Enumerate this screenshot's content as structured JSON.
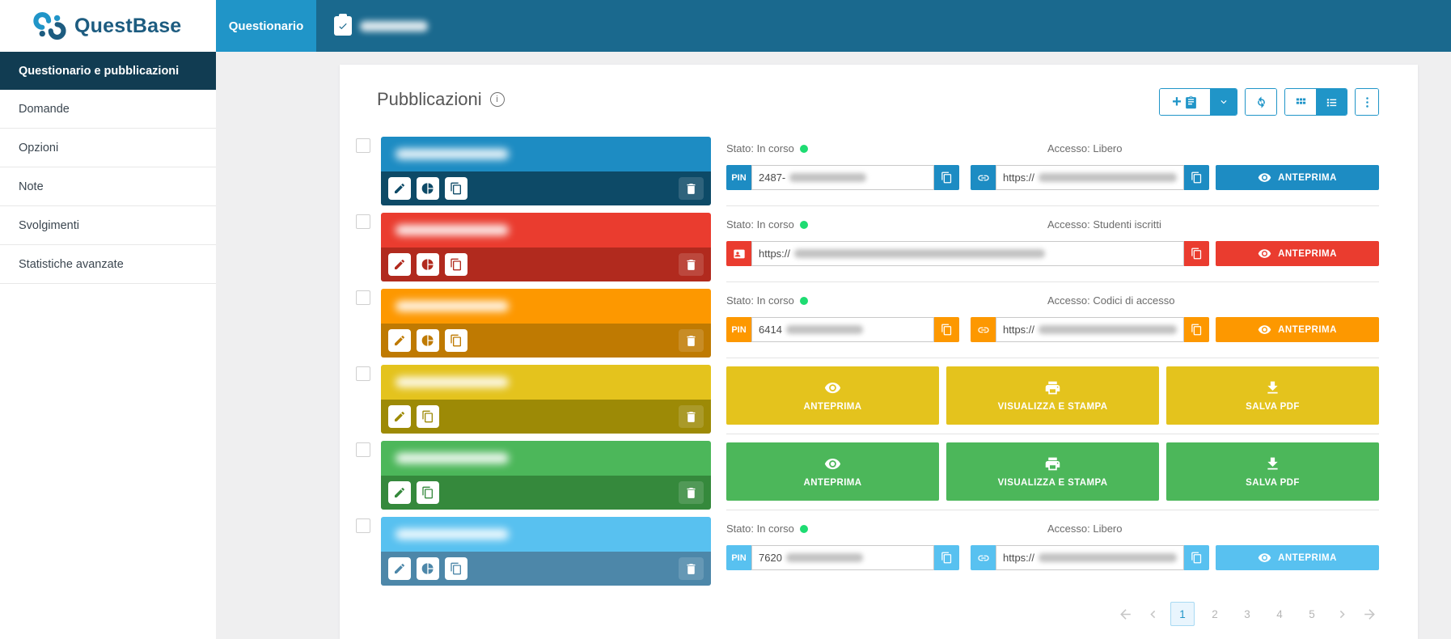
{
  "brand": {
    "name": "QuestBase"
  },
  "header": {
    "tab_questionario": "Questionario",
    "doc_tab_icon": "clipboard-check-icon",
    "colors": {
      "bar": "#1a698e",
      "active_tab": "#2095c8"
    }
  },
  "sidebar": {
    "items": [
      {
        "label": "Questionario e pubblicazioni",
        "active": true
      },
      {
        "label": "Domande",
        "active": false
      },
      {
        "label": "Opzioni",
        "active": false
      },
      {
        "label": "Note",
        "active": false
      },
      {
        "label": "Svolgimenti",
        "active": false
      },
      {
        "label": "Statistiche avanzate",
        "active": false
      }
    ],
    "active_bg": "#113c52"
  },
  "main": {
    "title": "Pubblicazioni",
    "toolbar": {
      "accent": "#2095c8",
      "buttons": [
        {
          "name": "add-publication",
          "icons": [
            "plus",
            "clipboard"
          ]
        },
        {
          "name": "add-publication-dropdown",
          "icon": "chevron-down",
          "filled": true
        },
        {
          "name": "refresh",
          "icon": "refresh"
        },
        {
          "name": "grid-view",
          "icon": "grid",
          "filled": false
        },
        {
          "name": "list-view",
          "icon": "list",
          "filled": true
        },
        {
          "name": "more-options",
          "icon": "dots-vertical"
        }
      ]
    },
    "labels": {
      "pin": "PIN",
      "url_prefix": "https://",
      "anteprima": "ANTEPRIMA"
    },
    "status_dot_color": "#1edc72",
    "rows": [
      {
        "type": "pin_link",
        "color": "#1d8cc3",
        "dark": "#0d4a67",
        "stato": "Stato: In corso",
        "accesso": "Accesso: Libero",
        "pin_value": "2487-",
        "url_value": "https://",
        "has_stats": true,
        "anteprima": "ANTEPRIMA"
      },
      {
        "type": "roster_link",
        "color": "#ea3c2f",
        "dark": "#b12a1e",
        "stato": "Stato: In corso",
        "accesso": "Accesso: Studenti iscritti",
        "url_value": "https://",
        "has_stats": true,
        "anteprima": "ANTEPRIMA"
      },
      {
        "type": "pin_link",
        "color": "#fd9800",
        "dark": "#bf7a02",
        "stato": "Stato: In corso",
        "accesso": "Accesso: Codici di accesso",
        "pin_value": "6414",
        "url_value": "https://",
        "has_stats": true,
        "anteprima": "ANTEPRIMA"
      },
      {
        "type": "buttons",
        "color": "#e4c31d",
        "dark": "#9d8a06",
        "has_stats": false,
        "buttons": [
          {
            "label": "ANTEPRIMA",
            "icon": "eye"
          },
          {
            "label": "VISUALIZZA E STAMPA",
            "icon": "printer"
          },
          {
            "label": "SALVA PDF",
            "icon": "download"
          }
        ]
      },
      {
        "type": "buttons",
        "color": "#4cb75a",
        "dark": "#35893c",
        "has_stats": false,
        "buttons": [
          {
            "label": "ANTEPRIMA",
            "icon": "eye"
          },
          {
            "label": "VISUALIZZA E STAMPA",
            "icon": "printer"
          },
          {
            "label": "SALVA PDF",
            "icon": "download"
          }
        ]
      },
      {
        "type": "pin_link",
        "color": "#58c1f0",
        "dark": "#4d87a9",
        "stato": "Stato: In corso",
        "accesso": "Accesso: Libero",
        "pin_value": "7620",
        "url_value": "https://",
        "has_stats": true,
        "anteprima": "ANTEPRIMA"
      }
    ],
    "pagination": {
      "pages": [
        "1",
        "2",
        "3",
        "4",
        "5"
      ],
      "active_page": "1"
    }
  }
}
